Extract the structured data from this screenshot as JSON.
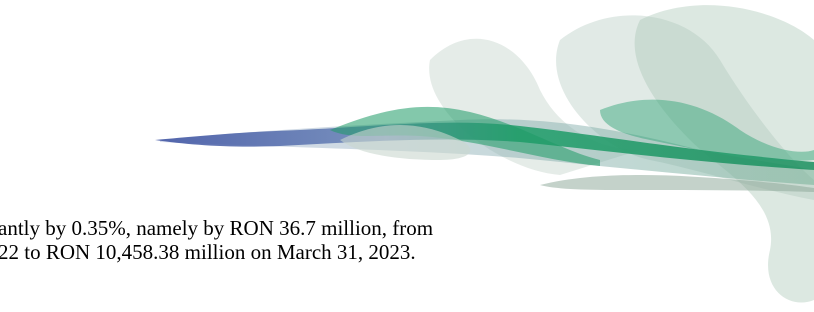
{
  "paragraph": {
    "lines": [
      "antly by 0.35%, namely by RON 36.7 million, from",
      "22 to RON 10,458.38 million on March 31, 2023."
    ]
  }
}
